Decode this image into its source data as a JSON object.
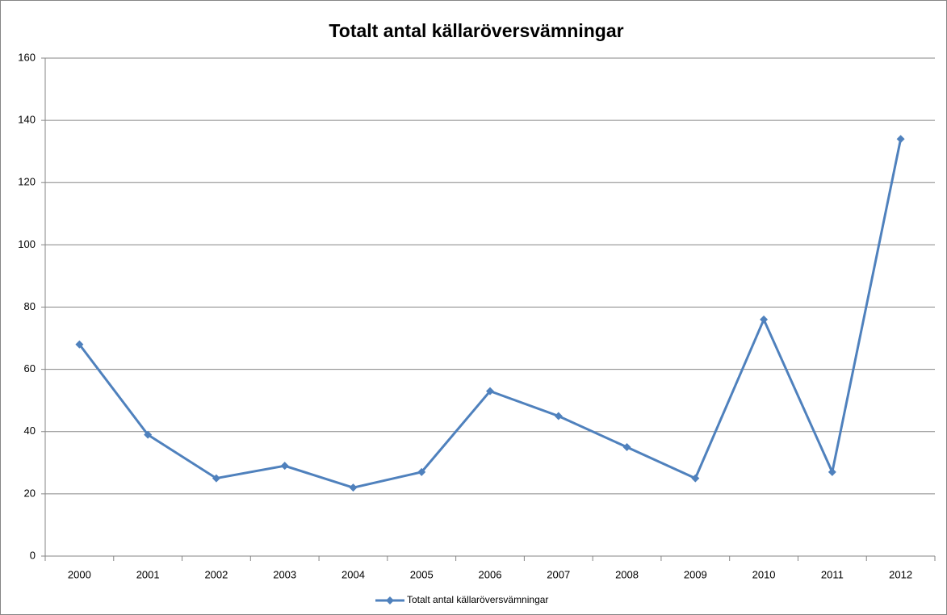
{
  "chart_data": {
    "type": "line",
    "title": "Totalt antal källaröversvämningar",
    "categories": [
      "2000",
      "2001",
      "2002",
      "2003",
      "2004",
      "2005",
      "2006",
      "2007",
      "2008",
      "2009",
      "2010",
      "2011",
      "2012"
    ],
    "series": [
      {
        "name": "Totalt antal källaröversvämningar",
        "color": "#4f81bd",
        "values": [
          68,
          39,
          25,
          29,
          22,
          27,
          53,
          45,
          35,
          25,
          76,
          27,
          134
        ]
      }
    ],
    "ylim": [
      0,
      160
    ],
    "yticks": [
      0,
      20,
      40,
      60,
      80,
      100,
      120,
      140,
      160
    ],
    "grid": true,
    "legend": "bottom"
  }
}
